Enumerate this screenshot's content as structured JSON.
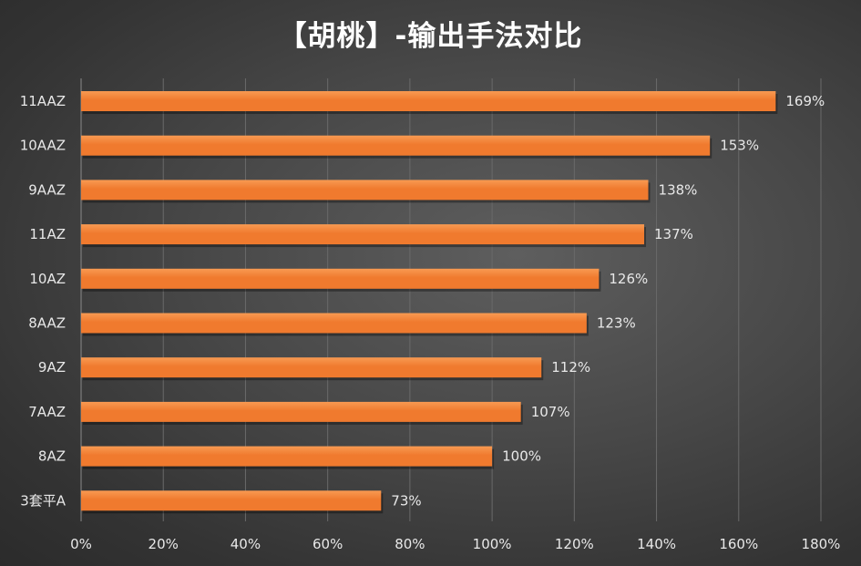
{
  "chart_data": {
    "type": "bar",
    "orientation": "horizontal",
    "title": "【胡桃】-输出手法对比",
    "categories": [
      "11AAZ",
      "10AAZ",
      "9AAZ",
      "11AZ",
      "10AZ",
      "8AAZ",
      "9AZ",
      "7AAZ",
      "8AZ",
      "3套平A"
    ],
    "values": [
      169,
      153,
      138,
      137,
      126,
      123,
      112,
      107,
      100,
      73
    ],
    "data_labels": [
      "169%",
      "153%",
      "138%",
      "137%",
      "126%",
      "123%",
      "112%",
      "107%",
      "100%",
      "73%"
    ],
    "xlim": [
      0,
      180
    ],
    "x_ticks": [
      0,
      20,
      40,
      60,
      80,
      100,
      120,
      140,
      160,
      180
    ],
    "x_tick_labels": [
      "0%",
      "20%",
      "40%",
      "60%",
      "80%",
      "100%",
      "120%",
      "140%",
      "160%",
      "180%"
    ],
    "xlabel": "",
    "ylabel": "",
    "grid": true,
    "legend": false,
    "bar_color": "#f07a2e",
    "bar_highlight_color": "#f89a52",
    "grid_color": "#6a6a6a",
    "text_color": "#e8e8e8",
    "title_color": "#ffffff"
  }
}
